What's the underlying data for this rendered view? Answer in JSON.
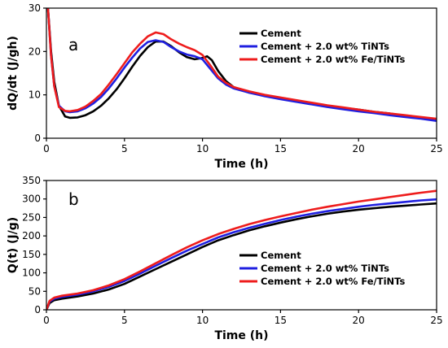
{
  "chart_data": [
    {
      "type": "line",
      "panel_label": "a",
      "xlabel": "Time (h)",
      "ylabel": "dQ/dt (J/gh)",
      "xlim": [
        0,
        25
      ],
      "ylim": [
        0,
        30
      ],
      "xticks": [
        0,
        5,
        10,
        15,
        20,
        25
      ],
      "yticks": [
        0,
        10,
        20,
        30
      ],
      "grid": false,
      "legend_position": "top-right",
      "series": [
        {
          "name": "Cement",
          "color": "#000000",
          "points": [
            [
              0.1,
              30
            ],
            [
              0.3,
              20
            ],
            [
              0.5,
              13
            ],
            [
              0.8,
              7.5
            ],
            [
              1.2,
              5.0
            ],
            [
              1.5,
              4.7
            ],
            [
              2,
              4.8
            ],
            [
              2.5,
              5.3
            ],
            [
              3,
              6.2
            ],
            [
              3.5,
              7.5
            ],
            [
              4,
              9.2
            ],
            [
              4.5,
              11.3
            ],
            [
              5,
              13.8
            ],
            [
              5.5,
              16.5
            ],
            [
              6,
              19.0
            ],
            [
              6.5,
              21.0
            ],
            [
              7,
              22.3
            ],
            [
              7.5,
              22.3
            ],
            [
              8,
              21.2
            ],
            [
              8.5,
              19.8
            ],
            [
              9,
              18.7
            ],
            [
              9.5,
              18.2
            ],
            [
              10,
              18.5
            ],
            [
              10.3,
              18.9
            ],
            [
              10.6,
              18.0
            ],
            [
              11,
              15.5
            ],
            [
              11.5,
              13.2
            ],
            [
              12,
              11.8
            ],
            [
              13,
              10.5
            ],
            [
              14,
              9.8
            ],
            [
              15,
              9.2
            ],
            [
              16,
              8.6
            ],
            [
              17,
              8.0
            ],
            [
              18,
              7.5
            ],
            [
              19,
              7.0
            ],
            [
              20,
              6.6
            ],
            [
              21,
              6.1
            ],
            [
              22,
              5.7
            ],
            [
              23,
              5.2
            ],
            [
              24,
              4.8
            ],
            [
              25,
              4.2
            ]
          ]
        },
        {
          "name": "Cement  + 2.0 wt% TiNTs",
          "color": "#1f1fe0",
          "points": [
            [
              0.1,
              30
            ],
            [
              0.3,
              19
            ],
            [
              0.5,
              12
            ],
            [
              0.8,
              7.5
            ],
            [
              1.2,
              6.2
            ],
            [
              1.5,
              6.0
            ],
            [
              2,
              6.2
            ],
            [
              2.5,
              6.9
            ],
            [
              3,
              8.0
            ],
            [
              3.5,
              9.5
            ],
            [
              4,
              11.5
            ],
            [
              4.5,
              13.8
            ],
            [
              5,
              16.3
            ],
            [
              5.5,
              18.6
            ],
            [
              6,
              20.7
            ],
            [
              6.5,
              22.2
            ],
            [
              7,
              22.6
            ],
            [
              7.5,
              22.2
            ],
            [
              8,
              21.0
            ],
            [
              8.5,
              20.0
            ],
            [
              9,
              19.3
            ],
            [
              9.5,
              18.9
            ],
            [
              10,
              18.2
            ],
            [
              10.5,
              16.0
            ],
            [
              11,
              13.8
            ],
            [
              11.5,
              12.4
            ],
            [
              12,
              11.5
            ],
            [
              13,
              10.5
            ],
            [
              14,
              9.7
            ],
            [
              15,
              9.0
            ],
            [
              16,
              8.4
            ],
            [
              17,
              7.8
            ],
            [
              18,
              7.2
            ],
            [
              19,
              6.7
            ],
            [
              20,
              6.2
            ],
            [
              21,
              5.8
            ],
            [
              22,
              5.3
            ],
            [
              23,
              4.9
            ],
            [
              24,
              4.5
            ],
            [
              25,
              4.0
            ]
          ]
        },
        {
          "name": "Cement  + 2.0 wt% Fe/TiNTs",
          "color": "#ee1c1c",
          "points": [
            [
              0.1,
              30
            ],
            [
              0.3,
              19
            ],
            [
              0.5,
              12
            ],
            [
              0.8,
              7.2
            ],
            [
              1.2,
              6.3
            ],
            [
              1.5,
              6.2
            ],
            [
              2,
              6.5
            ],
            [
              2.5,
              7.3
            ],
            [
              3,
              8.6
            ],
            [
              3.5,
              10.2
            ],
            [
              4,
              12.4
            ],
            [
              4.5,
              14.8
            ],
            [
              5,
              17.3
            ],
            [
              5.5,
              19.8
            ],
            [
              6,
              21.8
            ],
            [
              6.5,
              23.5
            ],
            [
              7,
              24.4
            ],
            [
              7.5,
              24.0
            ],
            [
              8,
              22.8
            ],
            [
              8.5,
              21.8
            ],
            [
              9,
              21.0
            ],
            [
              9.5,
              20.3
            ],
            [
              10,
              19.2
            ],
            [
              10.5,
              16.8
            ],
            [
              11,
              14.2
            ],
            [
              11.5,
              12.8
            ],
            [
              12,
              11.8
            ],
            [
              13,
              10.8
            ],
            [
              14,
              10.0
            ],
            [
              15,
              9.4
            ],
            [
              16,
              8.8
            ],
            [
              17,
              8.2
            ],
            [
              18,
              7.6
            ],
            [
              19,
              7.1
            ],
            [
              20,
              6.6
            ],
            [
              21,
              6.1
            ],
            [
              22,
              5.7
            ],
            [
              23,
              5.3
            ],
            [
              24,
              4.9
            ],
            [
              25,
              4.5
            ]
          ]
        }
      ]
    },
    {
      "type": "line",
      "panel_label": "b",
      "xlabel": "Time (h)",
      "ylabel": "Q(t) (J/g)",
      "xlim": [
        0,
        25
      ],
      "ylim": [
        0,
        350
      ],
      "xticks": [
        0,
        5,
        10,
        15,
        20,
        25
      ],
      "yticks": [
        0,
        50,
        100,
        150,
        200,
        250,
        300,
        350
      ],
      "grid": false,
      "legend_position": "bottom-right",
      "series": [
        {
          "name": "Cement",
          "color": "#000000",
          "points": [
            [
              0,
              0
            ],
            [
              0.2,
              18
            ],
            [
              0.5,
              26
            ],
            [
              1,
              30
            ],
            [
              2,
              36
            ],
            [
              3,
              44
            ],
            [
              4,
              55
            ],
            [
              5,
              70
            ],
            [
              6,
              90
            ],
            [
              7,
              110
            ],
            [
              8,
              130
            ],
            [
              9,
              150
            ],
            [
              10,
              170
            ],
            [
              11,
              188
            ],
            [
              12,
              202
            ],
            [
              13,
              215
            ],
            [
              14,
              226
            ],
            [
              15,
              236
            ],
            [
              16,
              245
            ],
            [
              17,
              253
            ],
            [
              18,
              260
            ],
            [
              19,
              266
            ],
            [
              20,
              271
            ],
            [
              21,
              275
            ],
            [
              22,
              279
            ],
            [
              23,
              282
            ],
            [
              24,
              285
            ],
            [
              25,
              288
            ]
          ]
        },
        {
          "name": "Cement + 2.0 wt% TiNTs",
          "color": "#1f1fe0",
          "points": [
            [
              0,
              0
            ],
            [
              0.2,
              22
            ],
            [
              0.5,
              30
            ],
            [
              1,
              35
            ],
            [
              2,
              41
            ],
            [
              3,
              50
            ],
            [
              4,
              62
            ],
            [
              5,
              78
            ],
            [
              6,
              98
            ],
            [
              7,
              119
            ],
            [
              8,
              140
            ],
            [
              9,
              160
            ],
            [
              10,
              178
            ],
            [
              11,
              196
            ],
            [
              12,
              210
            ],
            [
              13,
              222
            ],
            [
              14,
              233
            ],
            [
              15,
              243
            ],
            [
              16,
              252
            ],
            [
              17,
              260
            ],
            [
              18,
              267
            ],
            [
              19,
              273
            ],
            [
              20,
              279
            ],
            [
              21,
              284
            ],
            [
              22,
              288
            ],
            [
              23,
              292
            ],
            [
              24,
              296
            ],
            [
              25,
              299
            ]
          ]
        },
        {
          "name": "Cement + 2.0 wt% Fe/TiNTs",
          "color": "#ee1c1c",
          "points": [
            [
              0,
              0
            ],
            [
              0.2,
              24
            ],
            [
              0.5,
              33
            ],
            [
              1,
              38
            ],
            [
              2,
              44
            ],
            [
              3,
              53
            ],
            [
              4,
              66
            ],
            [
              5,
              83
            ],
            [
              6,
              104
            ],
            [
              7,
              126
            ],
            [
              8,
              148
            ],
            [
              9,
              169
            ],
            [
              10,
              188
            ],
            [
              11,
              205
            ],
            [
              12,
              219
            ],
            [
              13,
              232
            ],
            [
              14,
              243
            ],
            [
              15,
              253
            ],
            [
              16,
              262
            ],
            [
              17,
              271
            ],
            [
              18,
              279
            ],
            [
              19,
              286
            ],
            [
              20,
              293
            ],
            [
              21,
              299
            ],
            [
              22,
              305
            ],
            [
              23,
              311
            ],
            [
              24,
              317
            ],
            [
              25,
              322
            ]
          ]
        }
      ]
    }
  ]
}
